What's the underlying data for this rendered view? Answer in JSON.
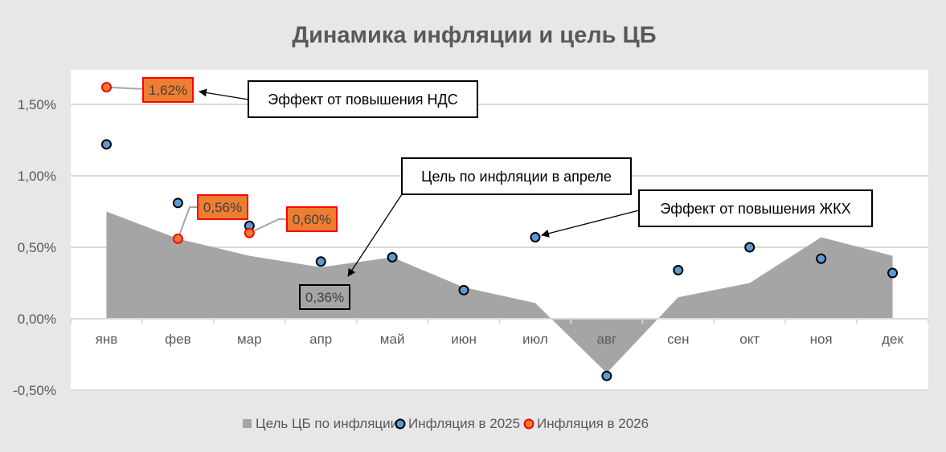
{
  "chart_data": {
    "type": "area+scatter",
    "title": "Динамика инфляции и цель ЦБ",
    "categories": [
      "янв",
      "фев",
      "мар",
      "апр",
      "май",
      "июн",
      "июл",
      "авг",
      "сен",
      "окт",
      "ноя",
      "дек"
    ],
    "ylim": [
      -0.5,
      1.75
    ],
    "yticks": [
      -0.5,
      0,
      0.5,
      1.0,
      1.5
    ],
    "ytick_labels": [
      "-0,50%",
      "0,00%",
      "0,50%",
      "1,00%",
      "1,50%"
    ],
    "grid": true,
    "legend_position": "bottom",
    "series": [
      {
        "name": "Цель ЦБ по инфляции",
        "type": "area",
        "color": "#a5a5a5",
        "values": [
          0.75,
          0.56,
          0.44,
          0.36,
          0.43,
          0.22,
          0.11,
          -0.38,
          0.15,
          0.25,
          0.57,
          0.44
        ]
      },
      {
        "name": "Инфляция в 2025",
        "type": "scatter",
        "color": "#5b9bd5",
        "stroke": "#000000",
        "values": [
          1.22,
          0.81,
          0.65,
          0.4,
          0.43,
          0.2,
          0.57,
          -0.4,
          0.34,
          0.5,
          0.42,
          0.32
        ]
      },
      {
        "name": "Инфляция в 2026",
        "type": "scatter",
        "color": "#ed7d31",
        "stroke": "#ff0000",
        "values": [
          1.62,
          0.56,
          0.6,
          null,
          null,
          null,
          null,
          null,
          null,
          null,
          null,
          null
        ]
      }
    ],
    "data_labels": [
      {
        "series": 2,
        "index": 0,
        "text": "1,62%"
      },
      {
        "series": 2,
        "index": 1,
        "text": "0,56%"
      },
      {
        "series": 2,
        "index": 2,
        "text": "0,60%"
      },
      {
        "series": 0,
        "index": 3,
        "text": "0,36%"
      }
    ],
    "annotations": [
      {
        "text": "Эффект от повышения НДС",
        "target": "янв 2026"
      },
      {
        "text": "Цель по инфляции в апреле",
        "target": "апр цель"
      },
      {
        "text": "Эффект от повышения ЖКХ",
        "target": "июл 2025"
      }
    ]
  }
}
